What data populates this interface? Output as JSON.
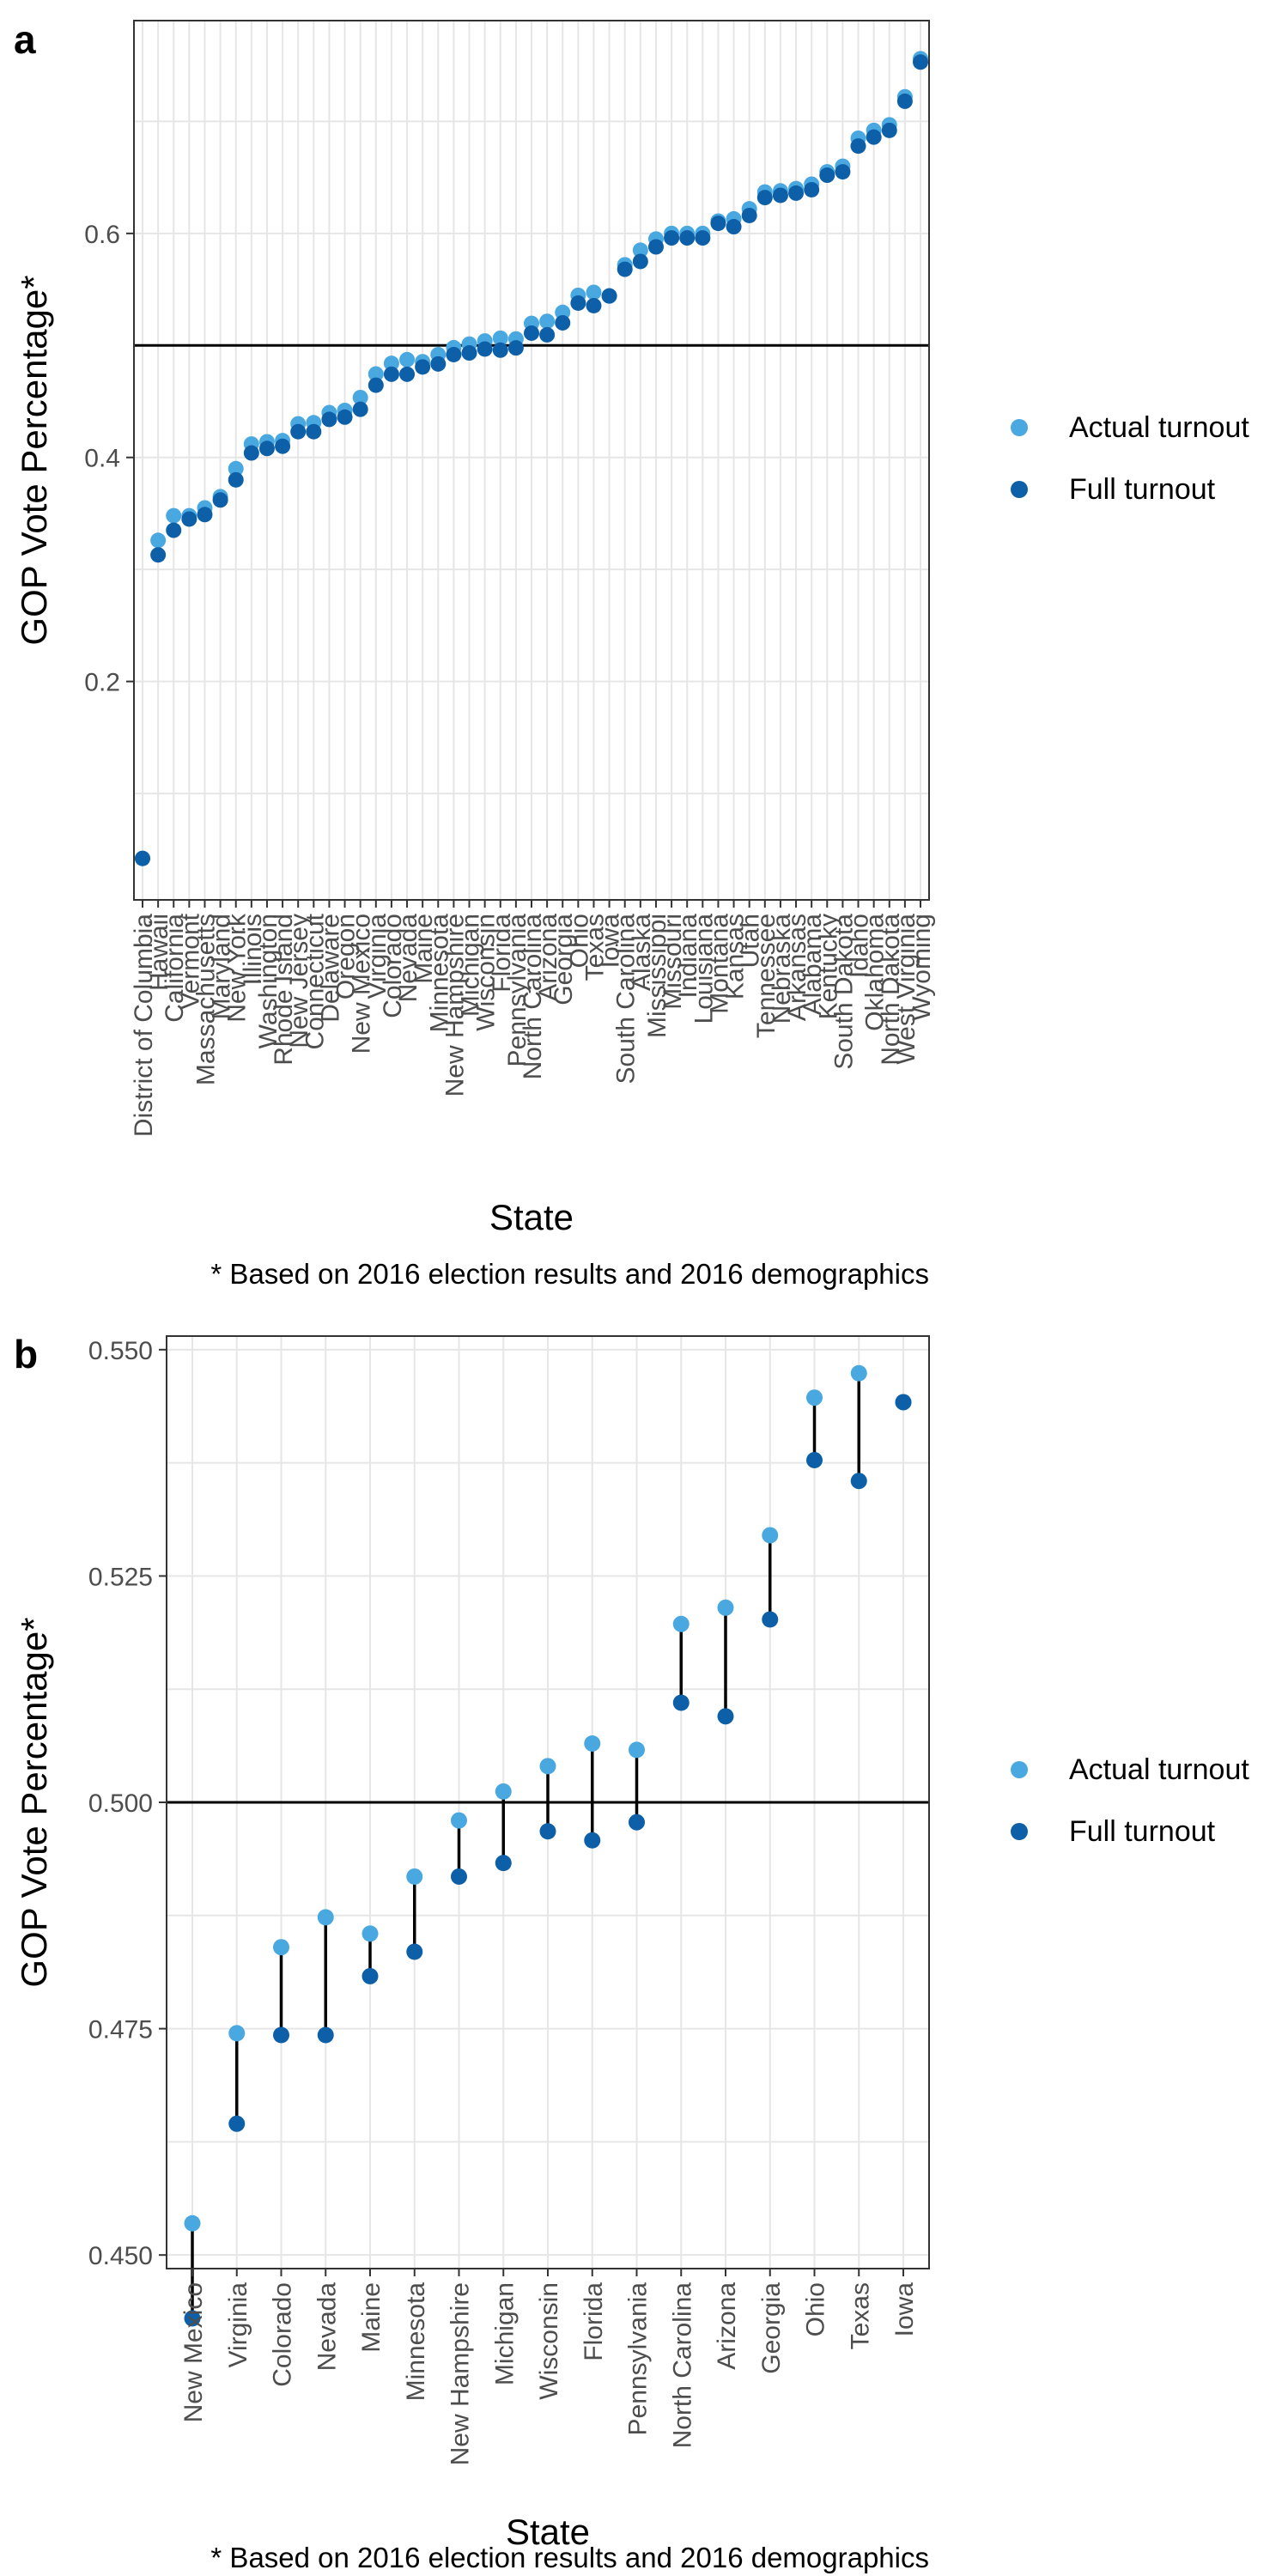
{
  "panel_a": {
    "letter": "a",
    "caption": "* Based on 2016 election results and 2016 demographics"
  },
  "panel_b": {
    "letter": "b",
    "caption": "* Based on 2016 election results and 2016 demographics"
  },
  "colors": {
    "actual": "#4aa8e0",
    "full": "#0d5fa8",
    "segment": "#000000",
    "grid": "#e6e6e6",
    "reference": "#000000"
  },
  "chart_data": [
    {
      "type": "scatter",
      "panel": "a",
      "title": "",
      "xlabel": "State",
      "ylabel": "GOP Vote Percentage*",
      "ylim": [
        0.005,
        0.79
      ],
      "yticks": [
        0.2,
        0.4,
        0.6
      ],
      "ytick_labels": [
        "0.2",
        "0.4",
        "0.6"
      ],
      "reference_line": 0.5,
      "grid": true,
      "legend_position": "right",
      "legend": [
        {
          "label": "Actual turnout",
          "series": "actual"
        },
        {
          "label": "Full turnout",
          "series": "full"
        }
      ],
      "categories": [
        "District of Columbia",
        "Hawaii",
        "California",
        "Vermont",
        "Massachusetts",
        "Maryland",
        "New York",
        "Illinois",
        "Washington",
        "Rhode Island",
        "New Jersey",
        "Connecticut",
        "Delaware",
        "Oregon",
        "New Mexico",
        "Virginia",
        "Colorado",
        "Nevada",
        "Maine",
        "Minnesota",
        "New Hampshire",
        "Michigan",
        "Wisconsin",
        "Florida",
        "Pennsylvania",
        "North Carolina",
        "Arizona",
        "Georgia",
        "Ohio",
        "Texas",
        "Iowa",
        "South Carolina",
        "Alaska",
        "Mississippi",
        "Missouri",
        "Indiana",
        "Louisiana",
        "Montana",
        "Kansas",
        "Utah",
        "Tennessee",
        "Nebraska",
        "Arkansas",
        "Alabama",
        "Kentucky",
        "South Dakota",
        "Idaho",
        "Oklahoma",
        "North Dakota",
        "West Virginia",
        "Wyoming"
      ],
      "series": [
        {
          "name": "Actual turnout",
          "key": "actual",
          "values": [
            0.042,
            0.326,
            0.348,
            0.348,
            0.355,
            0.365,
            0.39,
            0.412,
            0.414,
            0.415,
            0.43,
            0.431,
            0.44,
            0.442,
            0.4535,
            0.4745,
            0.484,
            0.4873,
            0.4855,
            0.4918,
            0.498,
            0.5012,
            0.504,
            0.5065,
            0.5058,
            0.5197,
            0.5215,
            0.5295,
            0.5447,
            0.5474,
            0.5442,
            0.572,
            0.585,
            0.595,
            0.6,
            0.6,
            0.6,
            0.611,
            0.613,
            0.622,
            0.637,
            0.638,
            0.64,
            0.644,
            0.655,
            0.66,
            0.685,
            0.692,
            0.697,
            0.722,
            0.756
          ]
        },
        {
          "name": "Full turnout",
          "key": "full",
          "values": [
            0.042,
            0.313,
            0.335,
            0.345,
            0.349,
            0.362,
            0.38,
            0.404,
            0.408,
            0.41,
            0.423,
            0.423,
            0.434,
            0.436,
            0.443,
            0.4645,
            0.4743,
            0.4743,
            0.4808,
            0.4835,
            0.4918,
            0.4933,
            0.4968,
            0.4958,
            0.4978,
            0.511,
            0.5095,
            0.5202,
            0.5378,
            0.5355,
            0.5442,
            0.568,
            0.575,
            0.588,
            0.596,
            0.596,
            0.596,
            0.609,
            0.606,
            0.616,
            0.632,
            0.634,
            0.636,
            0.639,
            0.652,
            0.655,
            0.678,
            0.686,
            0.692,
            0.718,
            0.753
          ]
        }
      ]
    },
    {
      "type": "scatter",
      "panel": "b",
      "title": "",
      "xlabel": "State",
      "ylabel": "GOP Vote Percentage*",
      "ylim": [
        0.4485,
        0.5515
      ],
      "yticks": [
        0.45,
        0.475,
        0.5,
        0.525,
        0.55
      ],
      "ytick_labels": [
        "0.450",
        "0.475",
        "0.500",
        "0.525",
        "0.550"
      ],
      "reference_line": 0.5,
      "grid": true,
      "legend_position": "right",
      "legend": [
        {
          "label": "Actual turnout",
          "series": "actual"
        },
        {
          "label": "Full turnout",
          "series": "full"
        }
      ],
      "categories": [
        "New Mexico",
        "Virginia",
        "Colorado",
        "Nevada",
        "Maine",
        "Minnesota",
        "New Hampshire",
        "Michigan",
        "Wisconsin",
        "Florida",
        "Pennsylvania",
        "North Carolina",
        "Arizona",
        "Georgia",
        "Ohio",
        "Texas",
        "Iowa"
      ],
      "series": [
        {
          "name": "Actual turnout",
          "key": "actual",
          "values": [
            0.4535,
            0.4745,
            0.484,
            0.4873,
            0.4855,
            0.4918,
            0.498,
            0.5012,
            0.504,
            0.5065,
            0.5058,
            0.5197,
            0.5215,
            0.5295,
            0.5447,
            0.5474,
            0.5442
          ]
        },
        {
          "name": "Full turnout",
          "key": "full",
          "values": [
            0.443,
            0.4645,
            0.4743,
            0.4743,
            0.4808,
            0.4835,
            0.4918,
            0.4933,
            0.4968,
            0.4958,
            0.4978,
            0.511,
            0.5095,
            0.5202,
            0.5378,
            0.5355,
            0.5442
          ]
        }
      ]
    }
  ]
}
